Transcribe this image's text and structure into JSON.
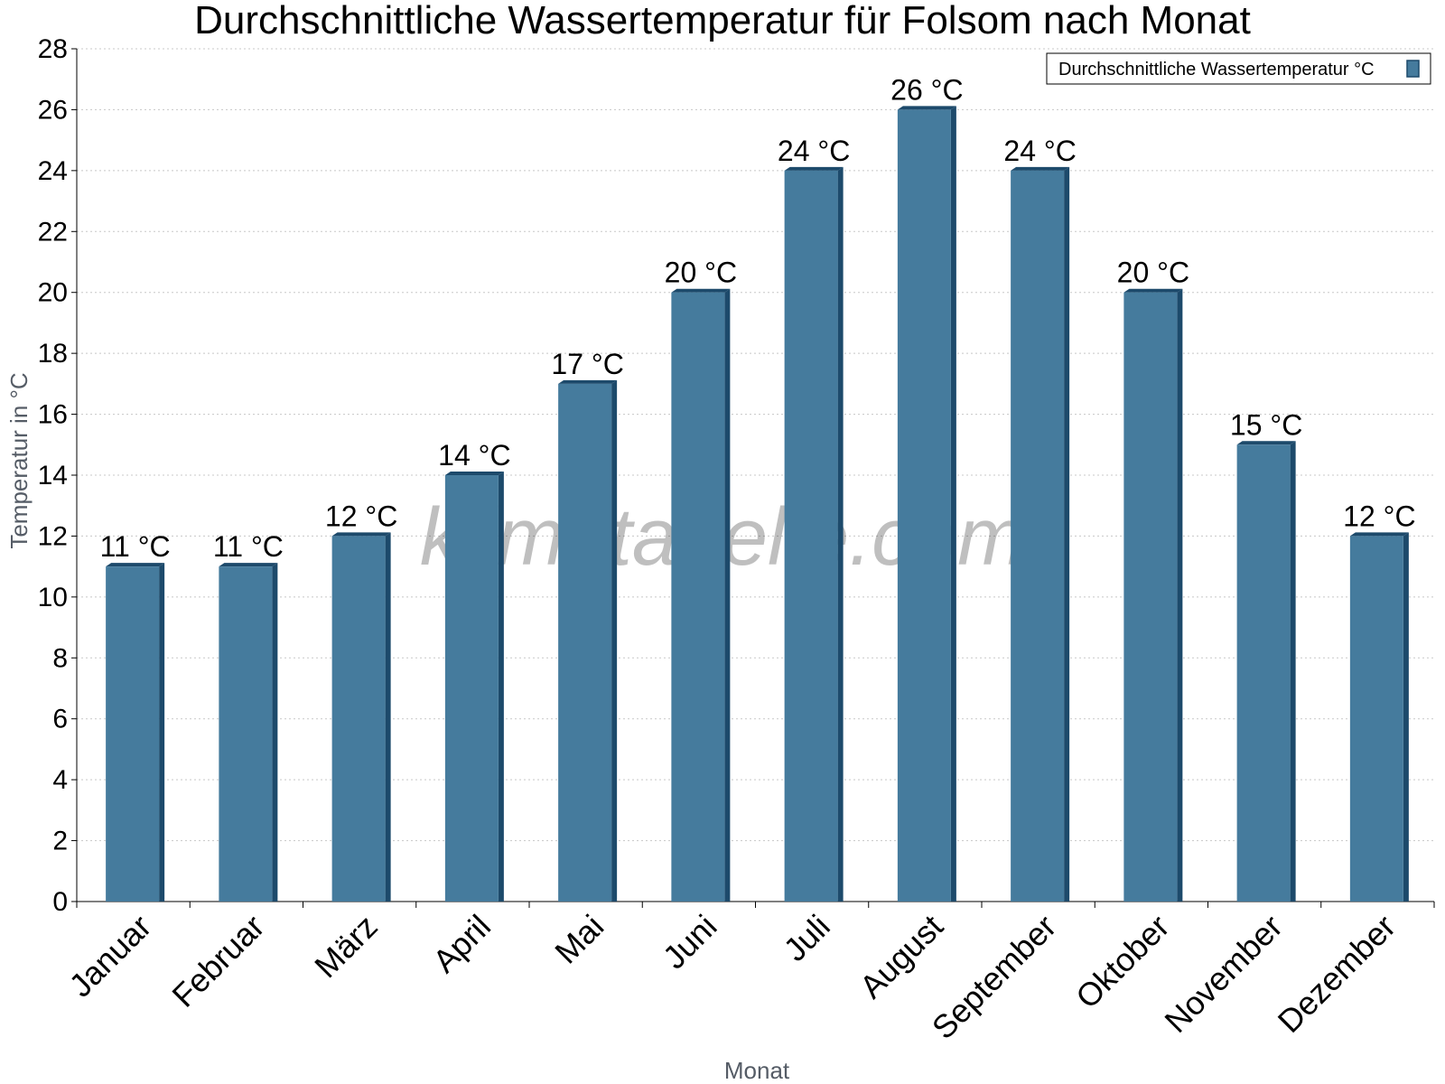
{
  "chart_data": {
    "type": "bar",
    "title": "Durchschnittliche Wassertemperatur für Folsom nach Monat",
    "xlabel": "Monat",
    "ylabel": "Temperatur in °C",
    "ylim": [
      0,
      28
    ],
    "yticks": [
      0,
      2,
      4,
      6,
      8,
      10,
      12,
      14,
      16,
      18,
      20,
      22,
      24,
      26,
      28
    ],
    "grid": true,
    "legend_position": "top-right",
    "categories": [
      "Januar",
      "Februar",
      "März",
      "April",
      "Mai",
      "Juni",
      "Juli",
      "August",
      "September",
      "Oktober",
      "November",
      "Dezember"
    ],
    "series": [
      {
        "name": "Durchschnittliche Wassertemperatur °C",
        "color": "#457b9d",
        "values": [
          11,
          11,
          12,
          14,
          17,
          20,
          24,
          26,
          24,
          20,
          15,
          12
        ],
        "labels": [
          "11 °C",
          "11 °C",
          "12 °C",
          "14 °C",
          "17 °C",
          "20 °C",
          "24 °C",
          "26 °C",
          "24 °C",
          "20 °C",
          "15 °C",
          "12 °C"
        ]
      }
    ]
  },
  "watermark": "klimatabelle.com",
  "colors": {
    "bar": "#457b9d",
    "bar_edge": "#1d4a6b",
    "grid": "#c8c8c8",
    "axis": "#000000"
  }
}
